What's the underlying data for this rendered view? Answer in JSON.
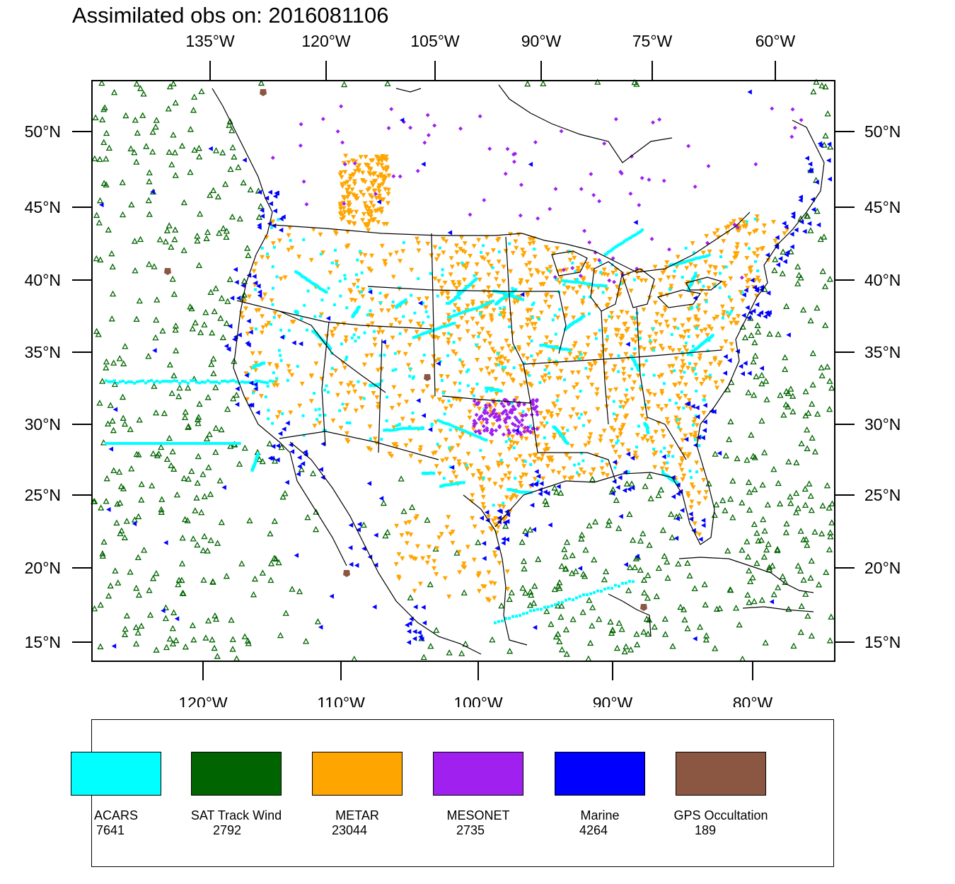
{
  "title": "Assimilated obs on: 2016081106",
  "top_axis": [
    "135°W",
    "120°W",
    "105°W",
    "90°W",
    "75°W",
    "60°W"
  ],
  "bottom_axis": [
    "120°W",
    "110°W",
    "100°W",
    "90°W",
    "80°W"
  ],
  "lat_axis": [
    "50°N",
    "45°N",
    "40°N",
    "35°N",
    "30°N",
    "25°N",
    "20°N",
    "15°N"
  ],
  "map": {
    "lon_range": [
      -128,
      -74
    ],
    "lat_range": [
      14,
      53
    ]
  },
  "legend": [
    {
      "name": "ACARS",
      "count": "7641",
      "color": "#00ffff",
      "marker": "square"
    },
    {
      "name": "SAT Track Wind",
      "count": "2792",
      "color": "#006400",
      "marker": "triangle-up"
    },
    {
      "name": "METAR",
      "count": "23044",
      "color": "#ffa500",
      "marker": "triangle-down"
    },
    {
      "name": "MESONET",
      "count": "2735",
      "color": "#a020f0",
      "marker": "diamond"
    },
    {
      "name": "Marine",
      "count": "4264",
      "color": "#0000ff",
      "marker": "triangle-left"
    },
    {
      "name": "GPS Occultation",
      "count": "189",
      "color": "#8b5742",
      "marker": "pentagon"
    }
  ]
}
